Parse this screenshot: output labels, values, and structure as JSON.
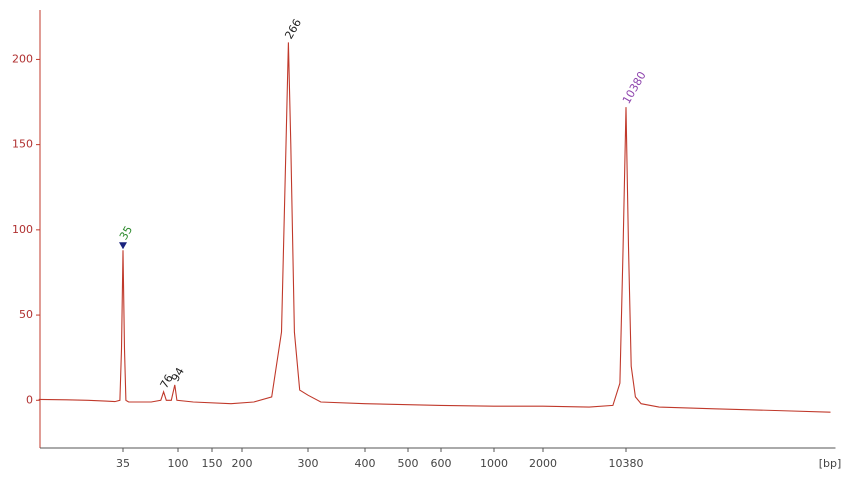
{
  "chart_data": {
    "type": "line",
    "x": [
      7,
      12,
      18,
      25,
      30,
      33,
      34,
      35,
      36,
      37,
      39,
      60,
      72,
      76,
      80,
      88,
      94,
      98,
      120,
      180,
      215,
      240,
      255,
      262,
      266,
      270,
      276,
      285,
      300,
      320,
      400,
      600,
      1000,
      2000,
      5000,
      8000,
      9200,
      9800,
      10380,
      10900,
      11500,
      12500,
      14000,
      20000,
      60000,
      200000,
      600000
    ],
    "values": [
      0.5,
      0.3,
      0,
      -0.5,
      -0.8,
      0,
      30,
      88,
      30,
      0,
      -1,
      -1,
      0,
      5,
      0,
      0,
      9,
      0,
      -1,
      -2,
      -1,
      2,
      40,
      150,
      210,
      150,
      40,
      6,
      3,
      -1,
      -2,
      -3,
      -3.5,
      -3.5,
      -4,
      -3,
      10,
      90,
      172,
      90,
      20,
      2,
      -2,
      -4,
      -5,
      -6,
      -7
    ],
    "color": "#c0392b",
    "xlim": [
      7,
      600000
    ],
    "xticks": [
      35,
      100,
      150,
      200,
      300,
      400,
      500,
      600,
      1000,
      2000,
      10380
    ],
    "xlabel": "[bp]",
    "ylim": [
      -28,
      229
    ],
    "yticks": [
      0,
      50,
      100,
      150,
      200
    ],
    "annotations": [
      {
        "text": 35,
        "x": 35,
        "y": 88,
        "color": "#2e8b2e",
        "marker": "triangle"
      },
      {
        "text": 76,
        "x": 76,
        "y": 5,
        "color": "#222222"
      },
      {
        "text": 94,
        "x": 94,
        "y": 9,
        "color": "#222222"
      },
      {
        "text": 266,
        "x": 266,
        "y": 210,
        "color": "#222222"
      },
      {
        "text": 10380,
        "x": 10380,
        "y": 172,
        "color": "#8e44ad"
      }
    ]
  }
}
